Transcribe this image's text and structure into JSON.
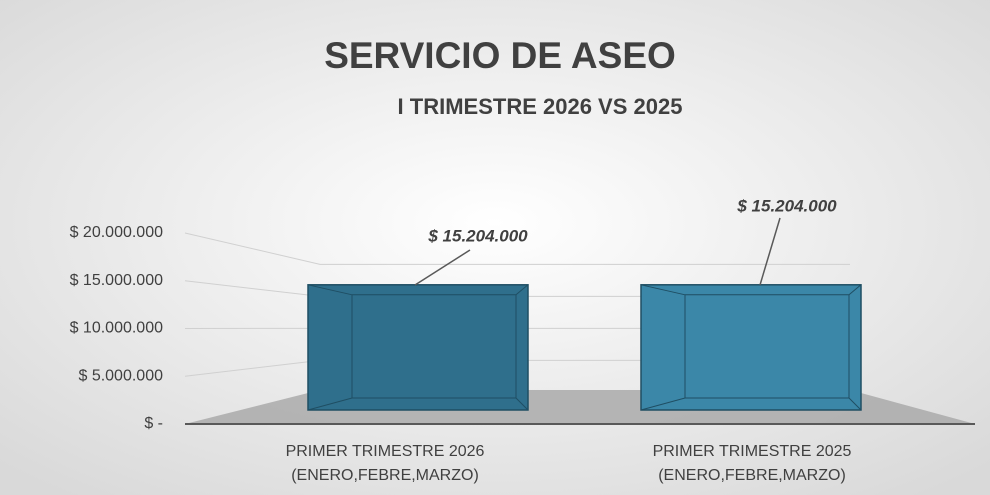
{
  "chart_data": {
    "type": "bar3d",
    "title": "SERVICIO DE ASEO",
    "subtitle": "I TRIMESTRE 2026 VS 2025",
    "categories": [
      [
        "PRIMER TRIMESTRE  2026",
        "(ENERO,FEBRE,MARZO)"
      ],
      [
        "PRIMER TRIMESTRE  2025",
        "(ENERO,FEBRE,MARZO)"
      ]
    ],
    "values": [
      15204000,
      15204000
    ],
    "value_labels": [
      "$ 15.204.000",
      "$ 15.204.000"
    ],
    "colors": [
      "#2f6f8c",
      "#3b87a8"
    ],
    "ylim": [
      0,
      20000000
    ],
    "yticks": [
      {
        "value": 0,
        "label": "$ -"
      },
      {
        "value": 5000000,
        "label": "$ 5.000.000"
      },
      {
        "value": 10000000,
        "label": "$ 10.000.000"
      },
      {
        "value": 15000000,
        "label": "$ 15.000.000"
      },
      {
        "value": 20000000,
        "label": "$ 20.000.000"
      }
    ],
    "grid": true
  }
}
